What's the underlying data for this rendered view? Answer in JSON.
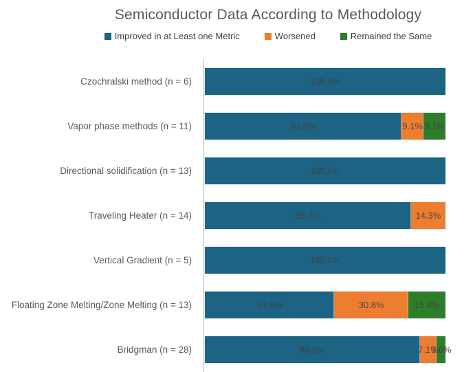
{
  "title": "Semiconductor Data According to Methodology",
  "colors": {
    "improved": "#1d6383",
    "worsened": "#ed7d31",
    "same": "#2e7d2b",
    "axis_line": "#d9d9d9",
    "title_text": "#595959",
    "category_text": "#595959",
    "bar_label_text": "#404040",
    "background": "#ffffff"
  },
  "chart_data": {
    "type": "bar",
    "orientation": "horizontal",
    "stacked": true,
    "unit": "%",
    "value_range": [
      0,
      100
    ],
    "grid": false,
    "legend_position": "top-center",
    "title": "Semiconductor Data According to Methodology",
    "xlabel": "",
    "ylabel": "",
    "categories": [
      "Czochralski method (n = 6)",
      "Vapor phase methods (n = 11)",
      "Directional solidification (n = 13)",
      "Traveling Heater (n = 14)",
      "Vertical Gradient (n = 5)",
      "Floating Zone Melting/Zone Melting (n = 13)",
      "Bridgman (n = 28)"
    ],
    "series": [
      {
        "key": "improved",
        "name": "Improved in at Least one Metric",
        "color": "#1d6383",
        "values": [
          100.0,
          81.8,
          100.0,
          85.7,
          100.0,
          53.8,
          89.3
        ]
      },
      {
        "key": "worsened",
        "name": "Worsened",
        "color": "#ed7d31",
        "values": [
          0,
          9.1,
          0,
          14.3,
          0,
          30.8,
          7.1
        ]
      },
      {
        "key": "same",
        "name": "Remained the Same",
        "color": "#2e7d2b",
        "values": [
          0,
          9.1,
          0,
          0,
          0,
          15.4,
          3.6
        ]
      }
    ],
    "data_label_format": "{value}%"
  }
}
